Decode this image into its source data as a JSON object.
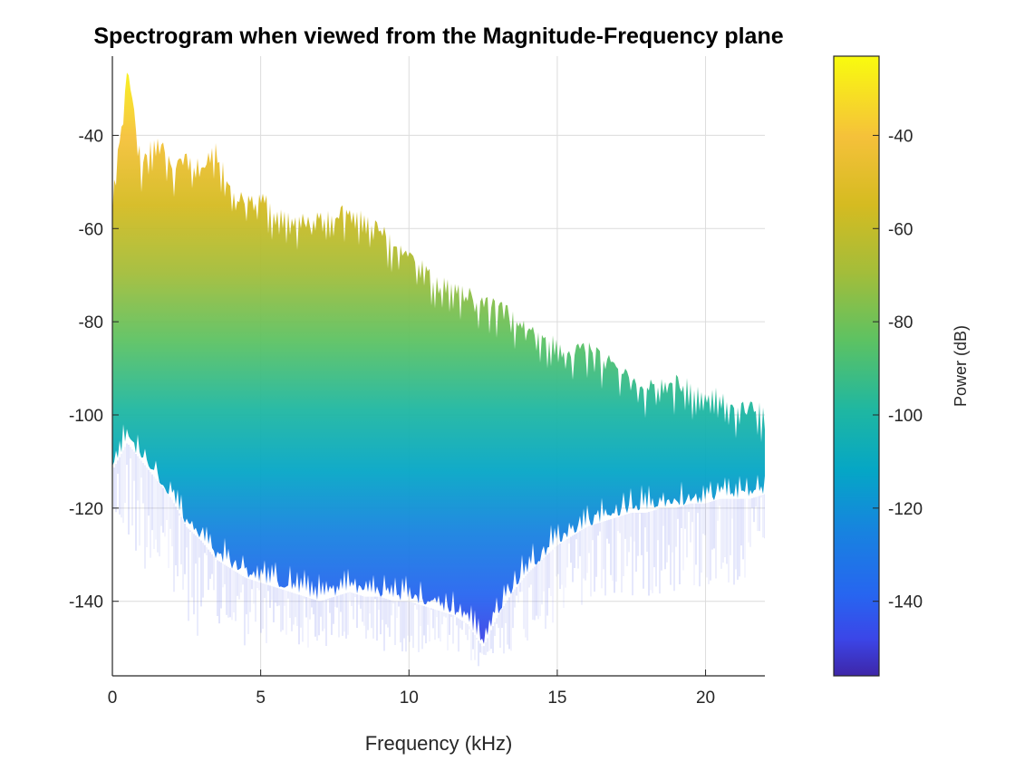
{
  "chart_data": {
    "type": "area",
    "title": "Spectrogram when viewed from the Magnitude-Frequency plane",
    "xlabel": "Frequency (kHz)",
    "ylabel": "",
    "xlim": [
      0,
      22
    ],
    "ylim": [
      -156,
      -23
    ],
    "xticks": [
      0,
      5,
      10,
      15,
      20
    ],
    "yticks": [
      -140,
      -120,
      -100,
      -80,
      -60,
      -40
    ],
    "grid": true,
    "colormap": "parula",
    "colorbar": {
      "label": "Power (dB)",
      "range": [
        -156,
        -23
      ],
      "ticks": [
        -140,
        -120,
        -100,
        -80,
        -60,
        -40
      ],
      "position": "right"
    },
    "series": [
      {
        "x": [
          0,
          0.5,
          1,
          1.5,
          2,
          2.5,
          3,
          3.5,
          4,
          4.5,
          5,
          5.5,
          6,
          6.5,
          7,
          7.5,
          8,
          8.5,
          9,
          9.5,
          10,
          10.5,
          11,
          11.5,
          12,
          12.5,
          13,
          13.5,
          14,
          14.5,
          15,
          15.5,
          16,
          16.5,
          17,
          17.5,
          18,
          18.5,
          19,
          19.5,
          20,
          20.5,
          21,
          21.5,
          22
        ],
        "upper": [
          -52,
          -25,
          -45,
          -38,
          -46,
          -43,
          -45,
          -41,
          -50,
          -53,
          -52,
          -54,
          -55,
          -57,
          -56,
          -56,
          -54,
          -56,
          -58,
          -62,
          -65,
          -66,
          -70,
          -70,
          -72,
          -74,
          -75,
          -77,
          -80,
          -81,
          -83,
          -85,
          -84,
          -86,
          -88,
          -90,
          -92,
          -92,
          -91,
          -92,
          -93,
          -94,
          -96,
          -97,
          -97
        ],
        "lower": [
          -112,
          -106,
          -110,
          -114,
          -118,
          -124,
          -127,
          -131,
          -133,
          -135,
          -136,
          -137,
          -138,
          -139,
          -140,
          -139,
          -138,
          -139,
          -139,
          -140,
          -140,
          -141,
          -142,
          -143,
          -145,
          -150,
          -143,
          -138,
          -134,
          -131,
          -128,
          -126,
          -124,
          -123,
          -122,
          -121,
          -121,
          -120,
          -120,
          -119,
          -119,
          -118,
          -118,
          -118,
          -117
        ],
        "floor_min": [
          -125,
          -128,
          -133,
          -136,
          -142,
          -146,
          -148,
          -148,
          -149,
          -150,
          -150,
          -150,
          -150,
          -150,
          -151,
          -150,
          -150,
          -150,
          -151,
          -151,
          -151,
          -151,
          -152,
          -152,
          -153,
          -155,
          -152,
          -151,
          -149,
          -147,
          -145,
          -143,
          -142,
          -141,
          -140,
          -140,
          -139,
          -139,
          -138,
          -138,
          -138,
          -137,
          -137,
          -137,
          -136
        ]
      }
    ]
  }
}
